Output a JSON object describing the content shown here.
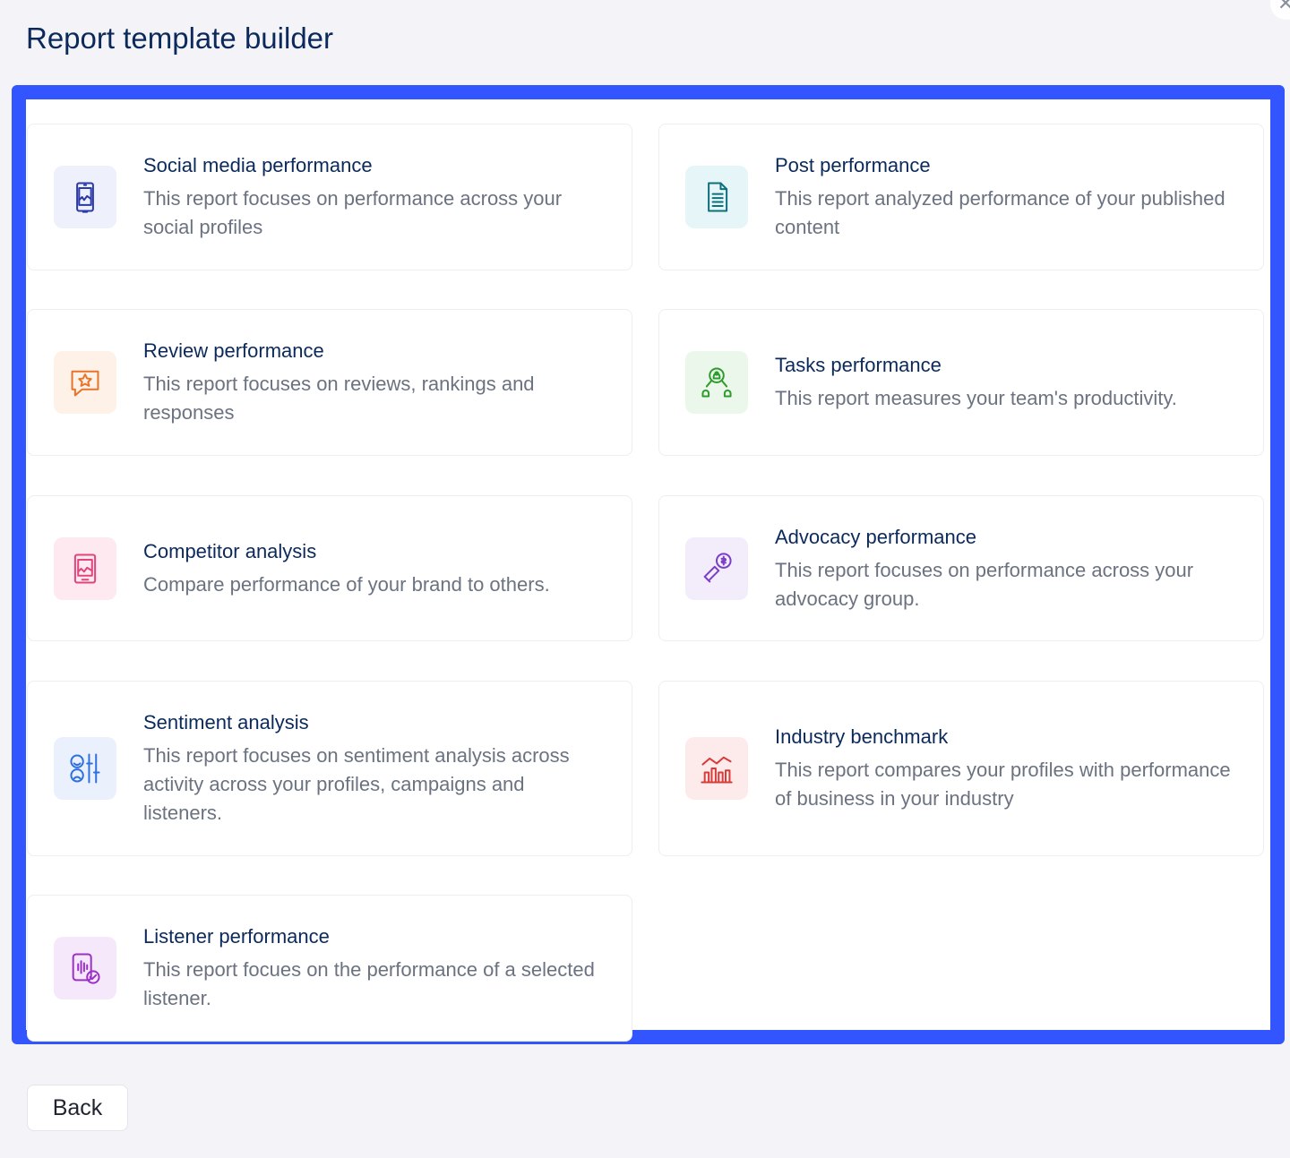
{
  "header": {
    "title": "Report template builder",
    "close_icon": "close-icon"
  },
  "templates": [
    {
      "title": "Social media performance",
      "description": "This report focuses on performance across your social profiles",
      "icon": "smartphone-chart-icon",
      "color": "#2b3aa8",
      "bg": "#eef0fc"
    },
    {
      "title": "Post performance",
      "description": "This report analyzed performance of your published content",
      "icon": "document-icon",
      "color": "#0e6f7d",
      "bg": "#e6f6f8"
    },
    {
      "title": "Review performance",
      "description": "This report focuses on reviews, rankings and responses",
      "icon": "star-chat-icon",
      "color": "#e8742c",
      "bg": "#fdf1e8"
    },
    {
      "title": "Tasks performance",
      "description": "This report measures your team's productivity.",
      "icon": "team-network-icon",
      "color": "#2e9b2e",
      "bg": "#eaf7ea"
    },
    {
      "title": "Competitor analysis",
      "description": "Compare performance of your brand to others.",
      "icon": "tablet-chart-icon",
      "color": "#e0457b",
      "bg": "#fde9ef"
    },
    {
      "title": "Advocacy performance",
      "description": "This report focuses on performance across your advocacy group.",
      "icon": "megaphone-dollar-icon",
      "color": "#7b3fc6",
      "bg": "#f2ecfb"
    },
    {
      "title": "Sentiment analysis",
      "description": "This report focuses on sentiment analysis across activity across your profiles, campaigns and listeners.",
      "icon": "sentiment-faces-icon",
      "color": "#2f6fe0",
      "bg": "#eaf1fd"
    },
    {
      "title": "Industry benchmark",
      "description": "This report compares your profiles with performance of business in your industry",
      "icon": "bar-line-chart-icon",
      "color": "#d93b3b",
      "bg": "#fdeaea"
    },
    {
      "title": "Listener performance",
      "description": "This report focues on the performance of a selected listener.",
      "icon": "listener-check-icon",
      "color": "#9b30c6",
      "bg": "#f5e8fb"
    }
  ],
  "footer": {
    "back_label": "Back"
  }
}
